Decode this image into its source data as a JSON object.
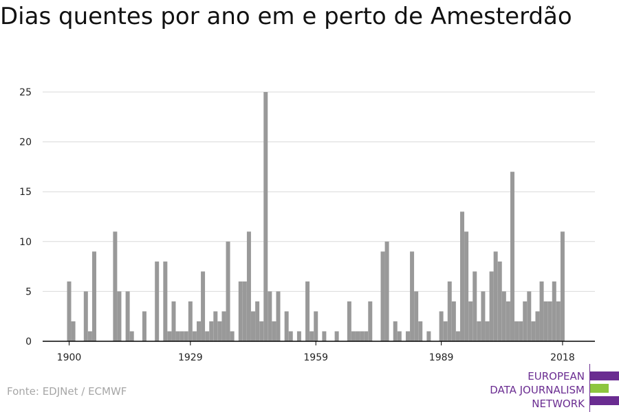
{
  "title": "Dias quentes por ano em e perto de Amesterdão",
  "source": "Fonte: EDJNet / ECMWF",
  "logo": {
    "lines": [
      "EUROPEAN",
      "DATA JOURNALISM",
      "NETWORK"
    ],
    "colors": {
      "purple": "#6a2c91",
      "green": "#8dc63f"
    }
  },
  "colors": {
    "bar": "#999999",
    "grid": "#d9d9d9",
    "axis": "#000000"
  },
  "chart_data": {
    "type": "bar",
    "title": "Dias quentes por ano em e perto de Amesterdão",
    "xlabel": "",
    "ylabel": "",
    "ylim": [
      0,
      25
    ],
    "yticks": [
      0,
      5,
      10,
      15,
      20,
      25
    ],
    "xticks": [
      1900,
      1929,
      1959,
      1989,
      2018
    ],
    "grid": true,
    "categories": [
      1900,
      1901,
      1902,
      1903,
      1904,
      1905,
      1906,
      1907,
      1908,
      1909,
      1910,
      1911,
      1912,
      1913,
      1914,
      1915,
      1916,
      1917,
      1918,
      1919,
      1920,
      1921,
      1922,
      1923,
      1924,
      1925,
      1926,
      1927,
      1928,
      1929,
      1930,
      1931,
      1932,
      1933,
      1934,
      1935,
      1936,
      1937,
      1938,
      1939,
      1940,
      1941,
      1942,
      1943,
      1944,
      1945,
      1946,
      1947,
      1948,
      1949,
      1950,
      1951,
      1952,
      1953,
      1954,
      1955,
      1956,
      1957,
      1958,
      1959,
      1960,
      1961,
      1962,
      1963,
      1964,
      1965,
      1966,
      1967,
      1968,
      1969,
      1970,
      1971,
      1972,
      1973,
      1974,
      1975,
      1976,
      1977,
      1978,
      1979,
      1980,
      1981,
      1982,
      1983,
      1984,
      1985,
      1986,
      1987,
      1988,
      1989,
      1990,
      1991,
      1992,
      1993,
      1994,
      1995,
      1996,
      1997,
      1998,
      1999,
      2000,
      2001,
      2002,
      2003,
      2004,
      2005,
      2006,
      2007,
      2008,
      2009,
      2010,
      2011,
      2012,
      2013,
      2014,
      2015,
      2016,
      2017,
      2018
    ],
    "values": [
      6,
      2,
      0,
      0,
      5,
      1,
      9,
      0,
      0,
      0,
      0,
      11,
      5,
      0,
      5,
      1,
      0,
      0,
      3,
      0,
      0,
      8,
      0,
      8,
      1,
      4,
      1,
      1,
      1,
      4,
      1,
      2,
      7,
      1,
      2,
      3,
      2,
      3,
      10,
      1,
      0,
      6,
      6,
      11,
      3,
      4,
      2,
      25,
      5,
      2,
      5,
      0,
      3,
      1,
      0,
      1,
      0,
      6,
      1,
      3,
      0,
      1,
      0,
      0,
      1,
      0,
      0,
      4,
      1,
      1,
      1,
      1,
      4,
      0,
      0,
      9,
      10,
      0,
      2,
      1,
      0,
      1,
      9,
      5,
      2,
      0,
      1,
      0,
      0,
      3,
      2,
      6,
      4,
      1,
      13,
      11,
      4,
      7,
      2,
      5,
      2,
      7,
      9,
      8,
      5,
      4,
      17,
      2,
      2,
      4,
      5,
      2,
      3,
      6,
      4,
      4,
      6,
      4,
      11
    ]
  }
}
